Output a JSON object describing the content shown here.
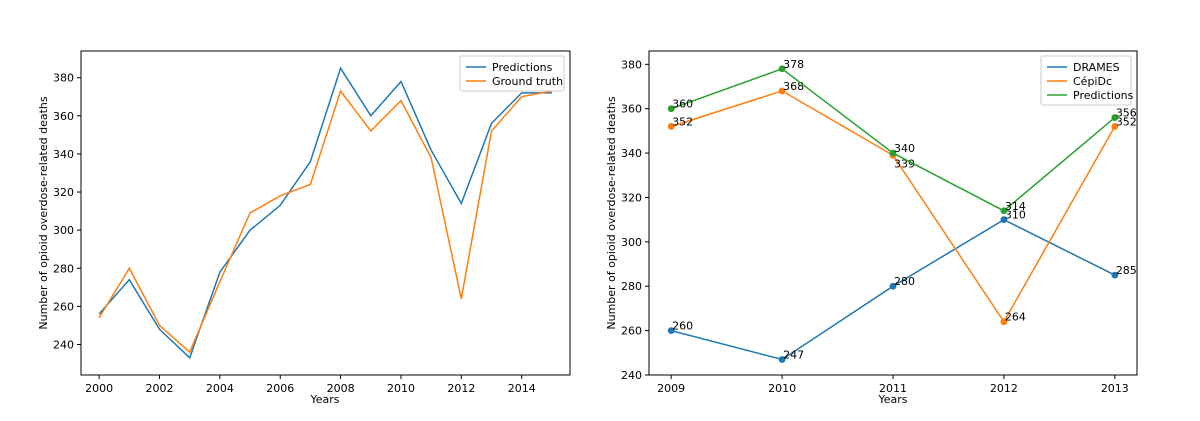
{
  "chart_data": [
    {
      "type": "line",
      "xlabel": "Years",
      "ylabel": "Number of opioid overdose-related deaths",
      "x": [
        2000,
        2001,
        2002,
        2003,
        2004,
        2005,
        2006,
        2007,
        2008,
        2009,
        2010,
        2011,
        2012,
        2013,
        2014,
        2015
      ],
      "xlim": [
        1999.4,
        2015.6
      ],
      "ylim": [
        224,
        394
      ],
      "xticks": [
        2000,
        2002,
        2004,
        2006,
        2008,
        2010,
        2012,
        2014
      ],
      "yticks": [
        240,
        260,
        280,
        300,
        320,
        340,
        360,
        380
      ],
      "legend_position": "top-right",
      "series": [
        {
          "name": "Predictions",
          "color": "#1f77b4",
          "values": [
            256,
            274,
            248,
            233,
            278,
            300,
            313,
            336,
            385,
            360,
            378,
            342,
            314,
            356,
            372,
            372
          ]
        },
        {
          "name": "Ground truth",
          "color": "#ff7f0e",
          "values": [
            254,
            280,
            250,
            236,
            273,
            309,
            318,
            324,
            373,
            352,
            368,
            338,
            264,
            352,
            370,
            373
          ]
        }
      ]
    },
    {
      "type": "line",
      "xlabel": "Years",
      "ylabel": "Number of opioid overdose-related deaths",
      "categories": [
        "2009",
        "2010",
        "2011",
        "2012",
        "2013"
      ],
      "ylim": [
        240,
        386
      ],
      "yticks": [
        240,
        260,
        280,
        300,
        320,
        340,
        360,
        380
      ],
      "legend_position": "top-right",
      "series": [
        {
          "name": "DRAMES",
          "color": "#1f77b4",
          "values": [
            260,
            247,
            280,
            310,
            285
          ],
          "labels": [
            "260",
            "247",
            "280",
            "310",
            "285"
          ]
        },
        {
          "name": "CépiDc",
          "color": "#ff7f0e",
          "values": [
            352,
            368,
            339,
            264,
            352
          ],
          "labels": [
            "352",
            "368",
            "339",
            "264",
            "352"
          ]
        },
        {
          "name": "Predictions",
          "color": "#2ca02c",
          "values": [
            360,
            378,
            340,
            314,
            356
          ],
          "labels": [
            "360",
            "378",
            "340",
            "314",
            "356"
          ]
        }
      ]
    }
  ]
}
